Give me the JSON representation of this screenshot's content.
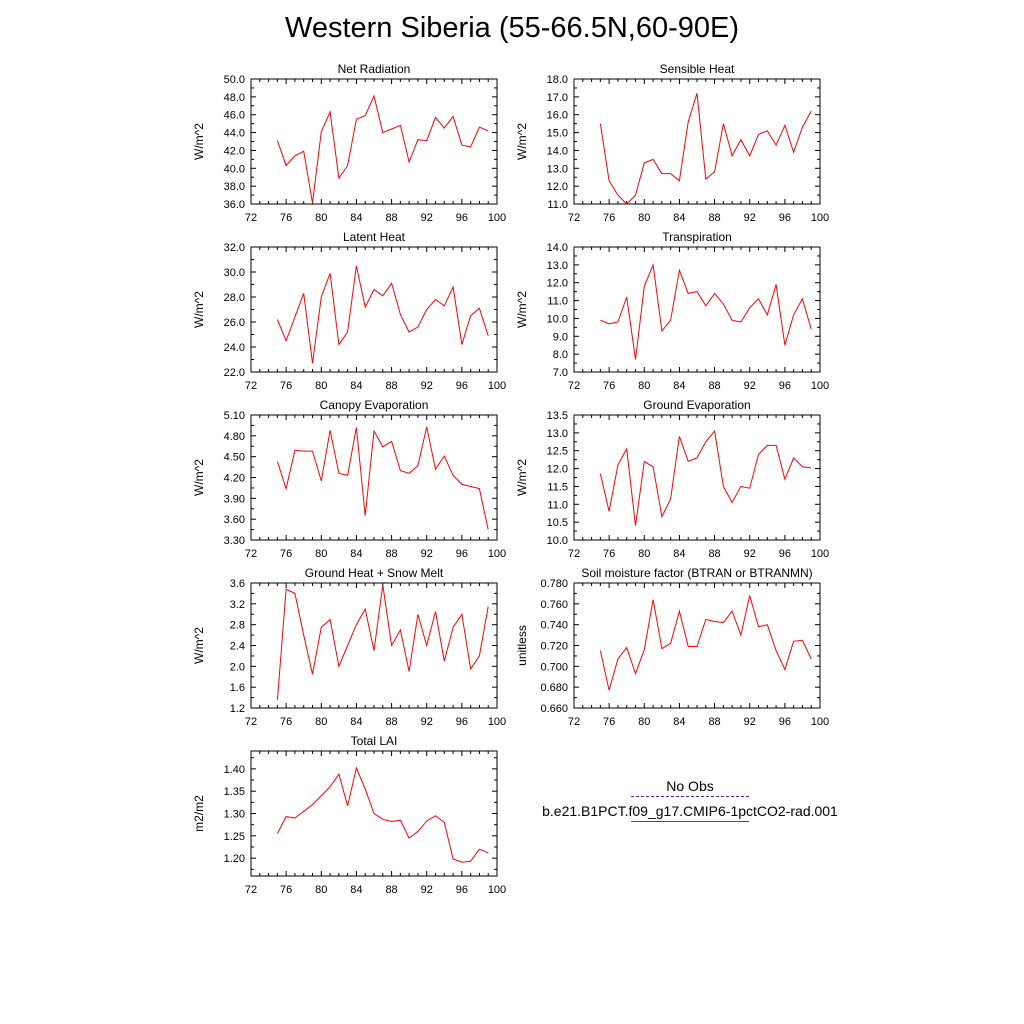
{
  "title": "Western Siberia (55-66.5N,60-90E)",
  "legend": {
    "obs_label": "No Obs",
    "model_label": "b.e21.B1PCT.f09_g17.CMIP6-1pctCO2-rad.001",
    "obs_color": "#2b2bd0",
    "model_color": "#ff0000"
  },
  "chart_data": [
    {
      "type": "line",
      "title": "Net Radiation",
      "ylabel": "W/m^2",
      "xlim": [
        72,
        100
      ],
      "xticks": [
        72,
        76,
        80,
        84,
        88,
        92,
        96,
        100
      ],
      "ylim": [
        36.0,
        50.0
      ],
      "yticks": [
        36.0,
        38.0,
        40.0,
        42.0,
        44.0,
        46.0,
        48.0,
        50.0
      ],
      "ydecimals": 1,
      "x": [
        75,
        76,
        77,
        78,
        79,
        80,
        81,
        82,
        83,
        84,
        85,
        86,
        87,
        88,
        89,
        90,
        91,
        92,
        93,
        94,
        95,
        96,
        97,
        98,
        99
      ],
      "series": [
        {
          "values": [
            43.1,
            40.3,
            41.4,
            41.9,
            36.1,
            44.1,
            46.3,
            38.9,
            40.3,
            45.5,
            45.9,
            48.1,
            44.0,
            44.4,
            44.8,
            40.7,
            43.2,
            43.1,
            45.7,
            44.5,
            45.8,
            42.6,
            42.4,
            44.6,
            44.2
          ]
        }
      ]
    },
    {
      "type": "line",
      "title": "Sensible Heat",
      "ylabel": "W/m^2",
      "xlim": [
        72,
        100
      ],
      "xticks": [
        72,
        76,
        80,
        84,
        88,
        92,
        96,
        100
      ],
      "ylim": [
        11.0,
        18.0
      ],
      "yticks": [
        11.0,
        12.0,
        13.0,
        14.0,
        15.0,
        16.0,
        17.0,
        18.0
      ],
      "ydecimals": 1,
      "x": [
        75,
        76,
        77,
        78,
        79,
        80,
        81,
        82,
        83,
        84,
        85,
        86,
        87,
        88,
        89,
        90,
        91,
        92,
        93,
        94,
        95,
        96,
        97,
        98,
        99
      ],
      "series": [
        {
          "values": [
            15.5,
            12.3,
            11.5,
            11.0,
            11.5,
            13.3,
            13.5,
            12.7,
            12.7,
            12.3,
            15.6,
            17.2,
            12.4,
            12.8,
            15.5,
            13.7,
            14.6,
            13.7,
            14.9,
            15.1,
            14.3,
            15.4,
            13.9,
            15.3,
            16.2
          ]
        }
      ]
    },
    {
      "type": "line",
      "title": "Latent Heat",
      "ylabel": "W/m^2",
      "xlim": [
        72,
        100
      ],
      "xticks": [
        72,
        76,
        80,
        84,
        88,
        92,
        96,
        100
      ],
      "ylim": [
        22.0,
        32.0
      ],
      "yticks": [
        22.0,
        24.0,
        26.0,
        28.0,
        30.0,
        32.0
      ],
      "ydecimals": 1,
      "x": [
        75,
        76,
        77,
        78,
        79,
        80,
        81,
        82,
        83,
        84,
        85,
        86,
        87,
        88,
        89,
        90,
        91,
        92,
        93,
        94,
        95,
        96,
        97,
        98,
        99
      ],
      "series": [
        {
          "values": [
            26.2,
            24.5,
            26.4,
            28.3,
            22.7,
            28.0,
            29.9,
            24.2,
            25.2,
            30.5,
            27.2,
            28.6,
            28.1,
            29.1,
            26.6,
            25.2,
            25.6,
            27.0,
            27.8,
            27.3,
            28.8,
            24.2,
            26.5,
            27.1,
            24.9
          ]
        }
      ]
    },
    {
      "type": "line",
      "title": "Transpiration",
      "ylabel": "W/m^2",
      "xlim": [
        72,
        100
      ],
      "xticks": [
        72,
        76,
        80,
        84,
        88,
        92,
        96,
        100
      ],
      "ylim": [
        7.0,
        14.0
      ],
      "yticks": [
        7.0,
        8.0,
        9.0,
        10.0,
        11.0,
        12.0,
        13.0,
        14.0
      ],
      "ydecimals": 1,
      "x": [
        75,
        76,
        77,
        78,
        79,
        80,
        81,
        82,
        83,
        84,
        85,
        86,
        87,
        88,
        89,
        90,
        91,
        92,
        93,
        94,
        95,
        96,
        97,
        98,
        99
      ],
      "series": [
        {
          "values": [
            9.9,
            9.7,
            9.8,
            11.2,
            7.7,
            11.8,
            13.0,
            9.3,
            9.9,
            12.7,
            11.4,
            11.5,
            10.7,
            11.4,
            10.8,
            9.9,
            9.8,
            10.6,
            11.1,
            10.2,
            11.9,
            8.5,
            10.2,
            11.1,
            9.4
          ]
        }
      ]
    },
    {
      "type": "line",
      "title": "Canopy Evaporation",
      "ylabel": "W/m^2",
      "xlim": [
        72,
        100
      ],
      "xticks": [
        72,
        76,
        80,
        84,
        88,
        92,
        96,
        100
      ],
      "ylim": [
        3.3,
        5.1
      ],
      "yticks": [
        3.3,
        3.6,
        3.9,
        4.2,
        4.5,
        4.8,
        5.1
      ],
      "ydecimals": 2,
      "x": [
        75,
        76,
        77,
        78,
        79,
        80,
        81,
        82,
        83,
        84,
        85,
        86,
        87,
        88,
        89,
        90,
        91,
        92,
        93,
        94,
        95,
        96,
        97,
        98,
        99
      ],
      "series": [
        {
          "values": [
            4.43,
            4.04,
            4.59,
            4.58,
            4.58,
            4.15,
            4.88,
            4.26,
            4.23,
            4.92,
            3.65,
            4.87,
            4.64,
            4.72,
            4.3,
            4.26,
            4.37,
            4.93,
            4.32,
            4.51,
            4.23,
            4.1,
            4.07,
            4.04,
            3.45
          ]
        }
      ]
    },
    {
      "type": "line",
      "title": "Ground Evaporation",
      "ylabel": "W/m^2",
      "xlim": [
        72,
        100
      ],
      "xticks": [
        72,
        76,
        80,
        84,
        88,
        92,
        96,
        100
      ],
      "ylim": [
        10.0,
        13.5
      ],
      "yticks": [
        10.0,
        10.5,
        11.0,
        11.5,
        12.0,
        12.5,
        13.0,
        13.5
      ],
      "ydecimals": 1,
      "x": [
        75,
        76,
        77,
        78,
        79,
        80,
        81,
        82,
        83,
        84,
        85,
        86,
        87,
        88,
        89,
        90,
        91,
        92,
        93,
        94,
        95,
        96,
        97,
        98,
        99
      ],
      "series": [
        {
          "values": [
            11.85,
            10.8,
            12.1,
            12.55,
            10.4,
            12.2,
            12.05,
            10.65,
            11.15,
            12.9,
            12.2,
            12.3,
            12.75,
            13.05,
            11.5,
            11.05,
            11.5,
            11.45,
            12.4,
            12.65,
            12.65,
            11.7,
            12.3,
            12.05,
            12.02
          ]
        }
      ]
    },
    {
      "type": "line",
      "title": "Ground Heat + Snow Melt",
      "ylabel": "W/m^2",
      "xlim": [
        72,
        100
      ],
      "xticks": [
        72,
        76,
        80,
        84,
        88,
        92,
        96,
        100
      ],
      "ylim": [
        1.2,
        3.6
      ],
      "yticks": [
        1.2,
        1.6,
        2.0,
        2.4,
        2.8,
        3.2,
        3.6
      ],
      "ydecimals": 1,
      "x": [
        75,
        76,
        77,
        78,
        79,
        80,
        81,
        82,
        83,
        84,
        85,
        86,
        87,
        88,
        89,
        90,
        91,
        92,
        93,
        94,
        95,
        96,
        97,
        98,
        99
      ],
      "series": [
        {
          "values": [
            1.35,
            3.48,
            3.4,
            2.6,
            1.85,
            2.75,
            2.9,
            2.0,
            2.4,
            2.8,
            3.1,
            2.3,
            3.56,
            2.4,
            2.7,
            1.9,
            3.0,
            2.4,
            3.05,
            2.1,
            2.75,
            3.0,
            1.95,
            2.2,
            3.15
          ]
        }
      ]
    },
    {
      "type": "line",
      "title": "Soil moisture factor (BTRAN or BTRANMN)",
      "ylabel": "unitless",
      "xlim": [
        72,
        100
      ],
      "xticks": [
        72,
        76,
        80,
        84,
        88,
        92,
        96,
        100
      ],
      "ylim": [
        0.66,
        0.78
      ],
      "yticks": [
        0.66,
        0.68,
        0.7,
        0.72,
        0.74,
        0.76,
        0.78
      ],
      "ydecimals": 3,
      "x": [
        75,
        76,
        77,
        78,
        79,
        80,
        81,
        82,
        83,
        84,
        85,
        86,
        87,
        88,
        89,
        90,
        91,
        92,
        93,
        94,
        95,
        96,
        97,
        98,
        99
      ],
      "series": [
        {
          "values": [
            0.715,
            0.677,
            0.707,
            0.718,
            0.693,
            0.716,
            0.764,
            0.717,
            0.722,
            0.753,
            0.719,
            0.719,
            0.745,
            0.743,
            0.742,
            0.753,
            0.73,
            0.768,
            0.738,
            0.74,
            0.715,
            0.697,
            0.724,
            0.725,
            0.707
          ]
        }
      ]
    },
    {
      "type": "line",
      "title": "Total LAI",
      "ylabel": "m2/m2",
      "xlim": [
        72,
        100
      ],
      "xticks": [
        72,
        76,
        80,
        84,
        88,
        92,
        96,
        100
      ],
      "ylim": [
        1.16,
        1.44
      ],
      "yticks": [
        1.2,
        1.25,
        1.3,
        1.35,
        1.4
      ],
      "ydecimals": 2,
      "x": [
        75,
        76,
        77,
        78,
        79,
        80,
        81,
        82,
        83,
        84,
        85,
        86,
        87,
        88,
        89,
        90,
        91,
        92,
        93,
        94,
        95,
        96,
        97,
        98,
        99
      ],
      "series": [
        {
          "values": [
            1.255,
            1.293,
            1.29,
            1.305,
            1.32,
            1.34,
            1.36,
            1.388,
            1.317,
            1.402,
            1.355,
            1.3,
            1.287,
            1.282,
            1.285,
            1.245,
            1.26,
            1.283,
            1.295,
            1.28,
            1.198,
            1.191,
            1.193,
            1.22,
            1.212
          ]
        }
      ]
    }
  ]
}
